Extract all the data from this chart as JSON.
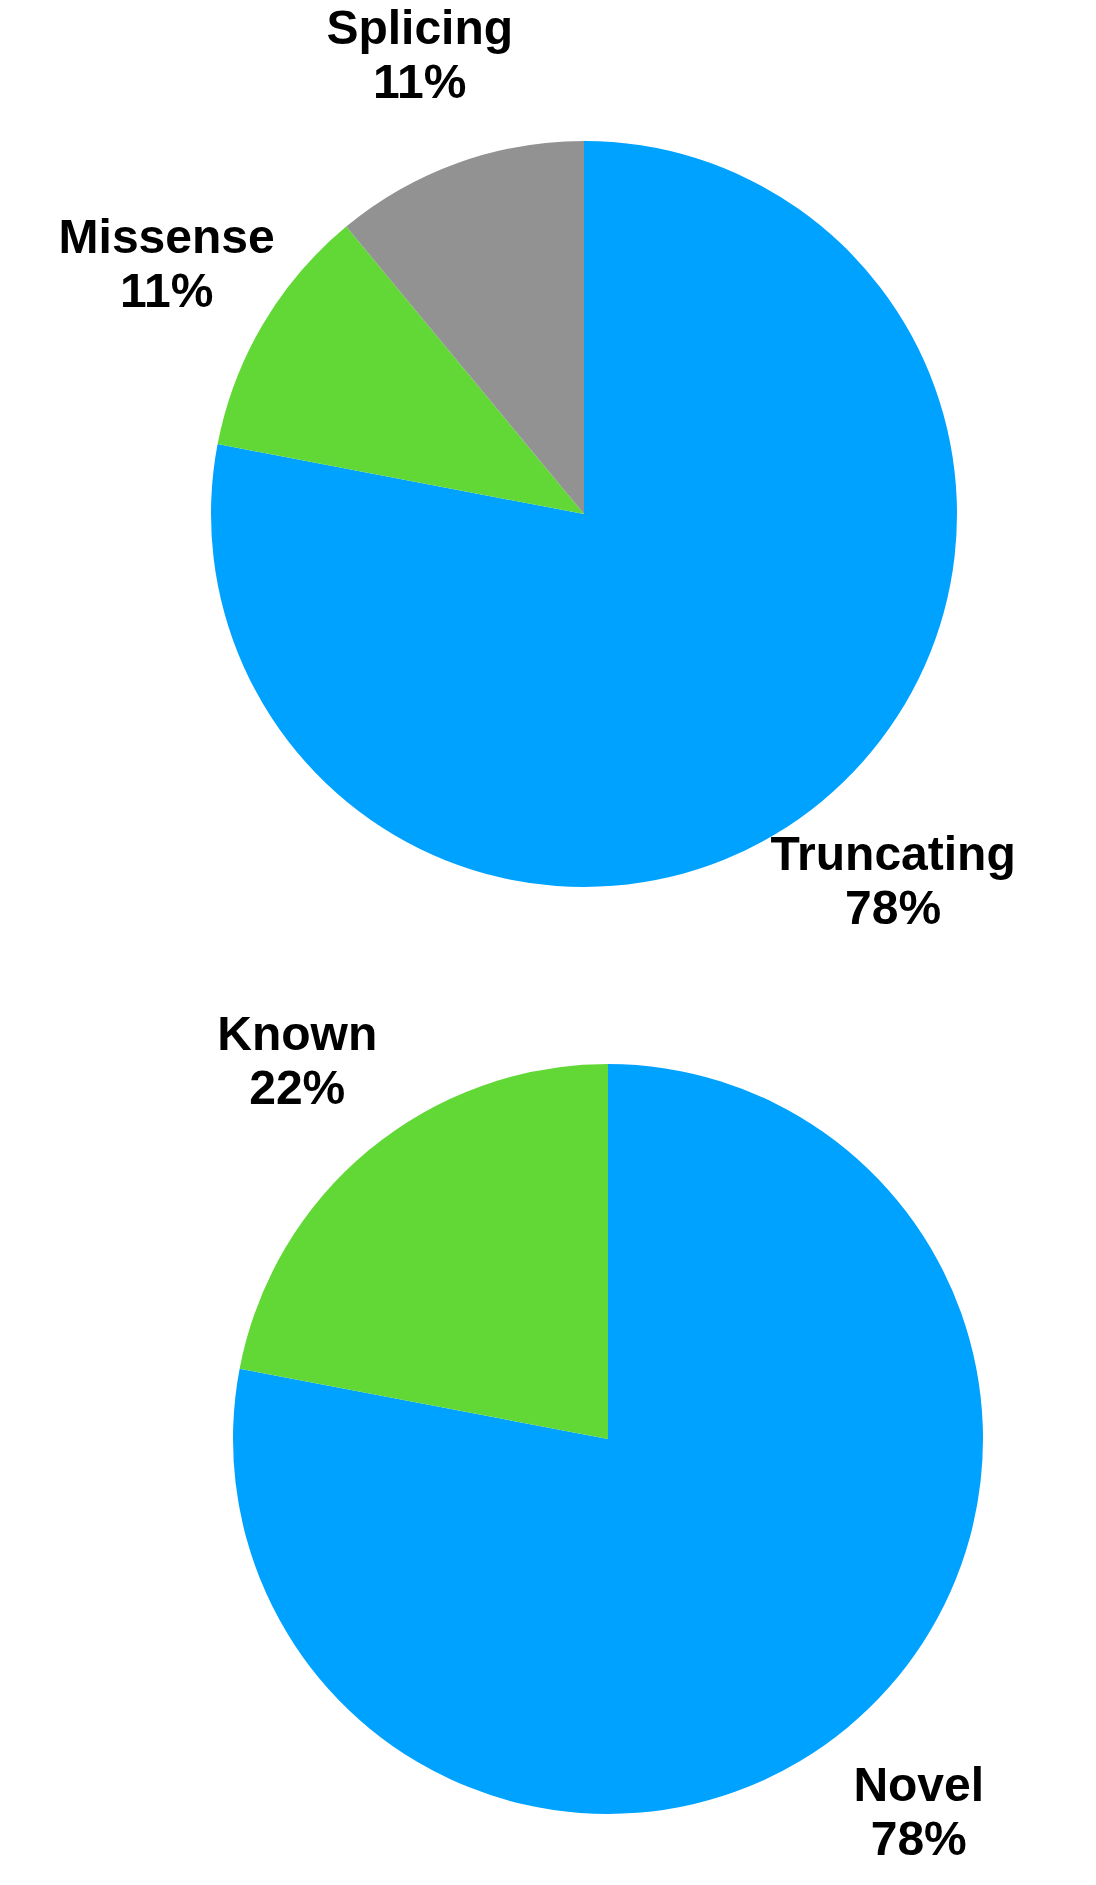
{
  "chart_data": [
    {
      "type": "pie",
      "categories": [
        "Truncating",
        "Missense",
        "Splicing"
      ],
      "values": [
        78,
        11,
        11
      ],
      "colors": [
        "#00a2ff",
        "#62d836",
        "#929292"
      ],
      "value_labels": [
        "78%",
        "11%",
        "11%"
      ],
      "legend": false
    },
    {
      "type": "pie",
      "categories": [
        "Novel",
        "Known"
      ],
      "values": [
        78,
        22
      ],
      "colors": [
        "#00a2ff",
        "#62d836"
      ],
      "value_labels": [
        "78%",
        "22%"
      ],
      "legend": false
    }
  ]
}
